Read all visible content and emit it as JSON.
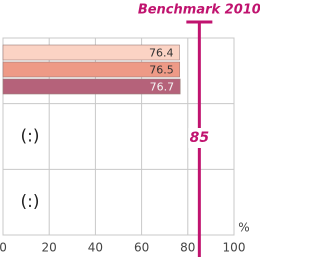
{
  "chart_data": {
    "type": "bar",
    "orientation": "horizontal",
    "categories": [
      null,
      null,
      null
    ],
    "category_notes": [
      null,
      "(:)",
      "(:)"
    ],
    "series": [
      {
        "color": "#fbd3c4",
        "label_color": "#333333",
        "values": [
          76.4,
          null,
          null
        ]
      },
      {
        "color": "#ee9a86",
        "label_color": "#333333",
        "values": [
          76.5,
          null,
          null
        ]
      },
      {
        "color": "#b5627a",
        "label_color": "#f4f4f4",
        "values": [
          76.7,
          null,
          null
        ]
      }
    ],
    "benchmark": {
      "value": 85,
      "label": "Benchmark 2010",
      "color": "#c0136f"
    },
    "xlabel": "%",
    "xlim": [
      0,
      100
    ],
    "xticks": [
      0,
      20,
      40,
      60,
      80,
      100
    ],
    "grid": true
  }
}
